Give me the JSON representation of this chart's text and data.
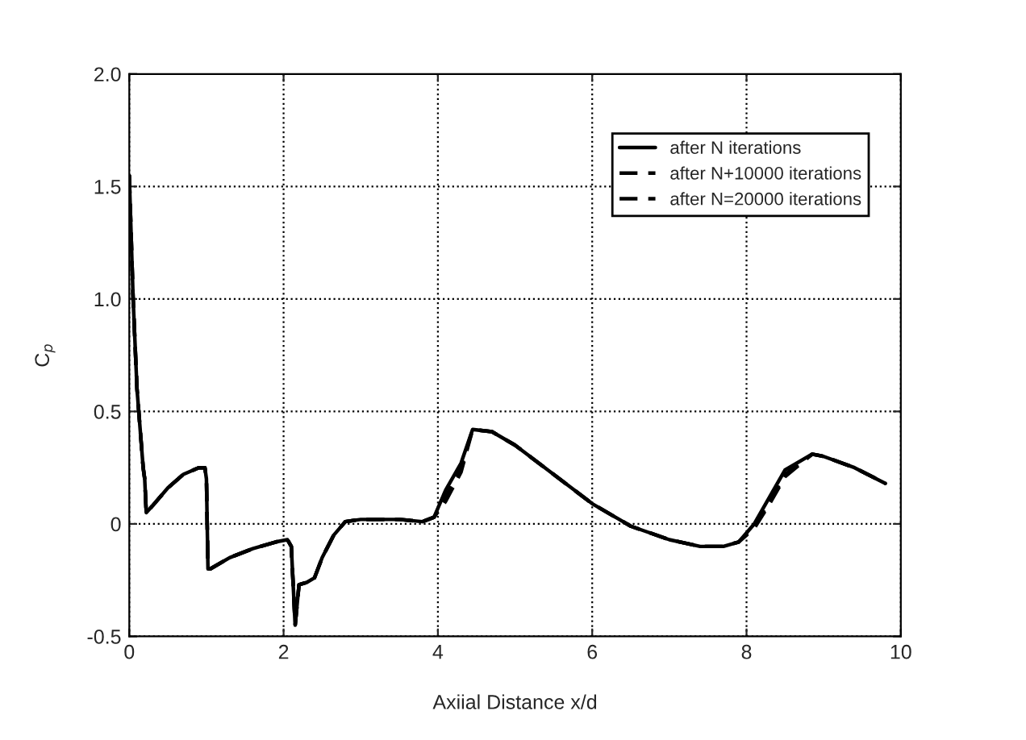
{
  "chart_data": {
    "type": "line",
    "xlabel": "Axiial Distance x/d",
    "ylabel": "C$_{p}$",
    "x": [
      0,
      0.05,
      0.1,
      0.18,
      0.2,
      0.22,
      0.3,
      0.5,
      0.7,
      0.9,
      0.98,
      1.0,
      1.02,
      1.05,
      1.3,
      1.6,
      1.9,
      2.05,
      2.1,
      2.15,
      2.2,
      2.3,
      2.4,
      2.5,
      2.65,
      2.8,
      3.0,
      3.5,
      3.8,
      3.95,
      4.1,
      4.3,
      4.45,
      4.7,
      5.0,
      5.5,
      6.0,
      6.5,
      7.0,
      7.4,
      7.7,
      7.9,
      8.1,
      8.3,
      8.5,
      8.85,
      9.0,
      9.4,
      9.8
    ],
    "series": [
      {
        "name": "after N iterations",
        "color": "#000000",
        "line_style": "solid",
        "values": [
          1.55,
          1.0,
          0.6,
          0.25,
          0.2,
          0.05,
          0.08,
          0.16,
          0.22,
          0.25,
          0.25,
          0.2,
          -0.2,
          -0.2,
          -0.15,
          -0.11,
          -0.08,
          -0.07,
          -0.1,
          -0.45,
          -0.27,
          -0.26,
          -0.24,
          -0.15,
          -0.05,
          0.01,
          0.02,
          0.02,
          0.01,
          0.03,
          0.15,
          0.27,
          0.42,
          0.41,
          0.35,
          0.22,
          0.09,
          -0.01,
          -0.07,
          -0.1,
          -0.1,
          -0.08,
          0.0,
          0.12,
          0.24,
          0.31,
          0.3,
          0.25,
          0.18
        ]
      },
      {
        "name": "after N+10000 iterations",
        "color": "#000000",
        "line_style": "dashed",
        "values": [
          1.55,
          1.0,
          0.6,
          0.25,
          0.2,
          0.05,
          0.08,
          0.16,
          0.22,
          0.25,
          0.25,
          0.2,
          -0.2,
          -0.2,
          -0.15,
          -0.11,
          -0.08,
          -0.07,
          -0.1,
          -0.45,
          -0.27,
          -0.26,
          -0.24,
          -0.15,
          -0.05,
          0.01,
          0.02,
          0.02,
          0.01,
          0.03,
          0.12,
          0.25,
          0.42,
          0.41,
          0.35,
          0.22,
          0.09,
          -0.01,
          -0.07,
          -0.1,
          -0.1,
          -0.08,
          -0.01,
          0.1,
          0.22,
          0.31,
          0.3,
          0.25,
          0.18
        ]
      },
      {
        "name": "after N=20000 iterations",
        "color": "#000000",
        "line_style": "dashed",
        "values": [
          1.55,
          1.0,
          0.6,
          0.25,
          0.2,
          0.05,
          0.08,
          0.16,
          0.22,
          0.25,
          0.25,
          0.2,
          -0.2,
          -0.2,
          -0.15,
          -0.11,
          -0.08,
          -0.07,
          -0.1,
          -0.45,
          -0.27,
          -0.26,
          -0.24,
          -0.15,
          -0.05,
          0.01,
          0.02,
          0.02,
          0.01,
          0.03,
          0.1,
          0.23,
          0.42,
          0.41,
          0.35,
          0.22,
          0.09,
          -0.01,
          -0.07,
          -0.1,
          -0.1,
          -0.08,
          -0.02,
          0.09,
          0.21,
          0.31,
          0.3,
          0.25,
          0.18
        ]
      }
    ],
    "xlim": [
      0,
      10
    ],
    "xticks": [
      0,
      2,
      4,
      6,
      8,
      10
    ],
    "ylim": [
      -0.5,
      2.0
    ],
    "yticks": [
      -0.5,
      0,
      0.5,
      {
        "value": 1.0,
        "label": "1.0"
      },
      1.5,
      {
        "value": 2.0,
        "label": "2.0"
      }
    ],
    "grid": true,
    "legend": "top right",
    "marker": "none"
  }
}
